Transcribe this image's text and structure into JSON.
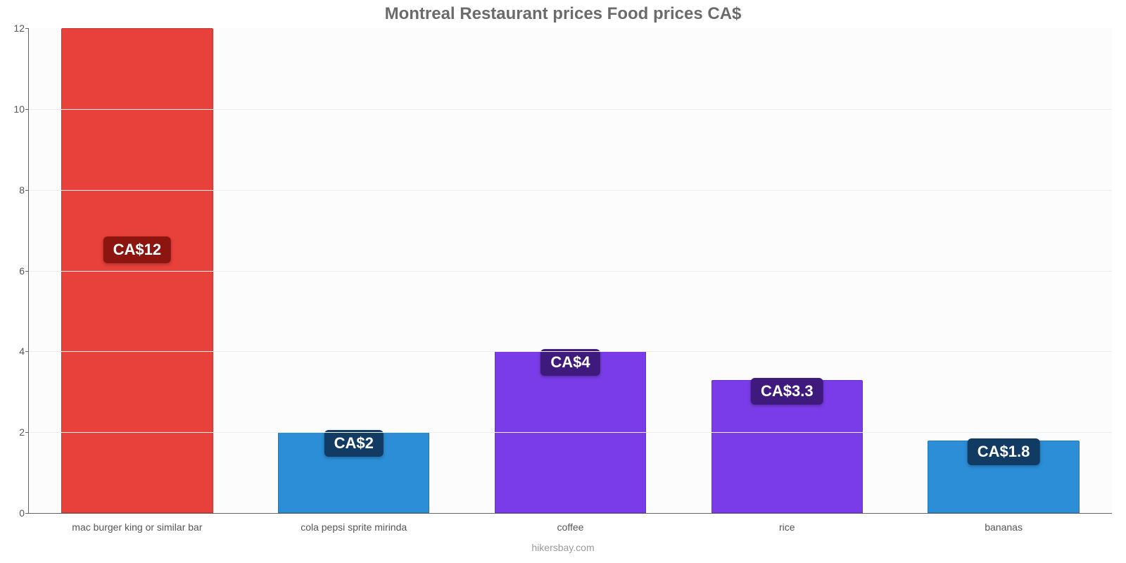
{
  "chart": {
    "type": "bar",
    "title": "Montreal Restaurant prices Food prices CA$",
    "title_fontsize": 24,
    "title_color": "#6b6b6b",
    "footer": "hikersbay.com",
    "footer_color": "#9a9a9a",
    "background_color": "#fcfcfc",
    "axis_color": "#666666",
    "grid_color": "#eeeeee",
    "tick_color": "#555555",
    "tick_fontsize": 14,
    "bar_label_fontsize": 22,
    "ylim": [
      0,
      12
    ],
    "ytick_step": 2,
    "yticks": [
      0,
      2,
      4,
      6,
      8,
      10,
      12
    ],
    "bar_width_pct": 14,
    "bar_gap_pct": 6,
    "categories": [
      "mac burger king or similar bar",
      "cola pepsi sprite mirinda",
      "coffee",
      "rice",
      "bananas"
    ],
    "values": [
      12,
      2,
      4,
      3.3,
      1.8
    ],
    "value_labels": [
      "CA$12",
      "CA$2",
      "CA$4",
      "CA$3.3",
      "CA$1.8"
    ],
    "bar_colors": [
      "#e8403a",
      "#2b8ed6",
      "#7a3ce8",
      "#7a3ce8",
      "#2b8ed6"
    ],
    "label_bg_colors": [
      "#8c1510",
      "#113b63",
      "#3e1a7d",
      "#3e1a7d",
      "#113b63"
    ]
  }
}
